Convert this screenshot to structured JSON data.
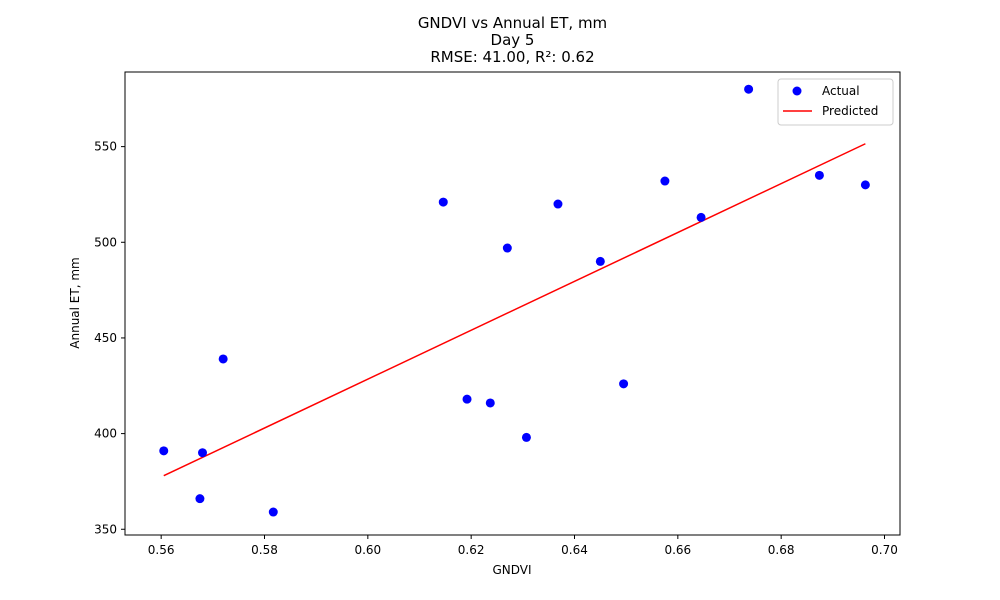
{
  "chart_data": {
    "type": "scatter",
    "title_lines": [
      "GNDVI vs Annual ET, mm",
      "Day 5",
      "RMSE: 41.00, R²: 0.62"
    ],
    "xlabel": "GNDVI",
    "ylabel": "Annual ET, mm",
    "xlim": [
      0.553,
      0.703
    ],
    "ylim": [
      347,
      589
    ],
    "xticks": [
      0.56,
      0.58,
      0.6,
      0.62,
      0.64,
      0.66,
      0.68,
      0.7
    ],
    "xtick_labels": [
      "0.56",
      "0.58",
      "0.60",
      "0.62",
      "0.64",
      "0.66",
      "0.68",
      "0.70"
    ],
    "yticks": [
      350,
      400,
      450,
      500,
      550
    ],
    "ytick_labels": [
      "350",
      "400",
      "450",
      "500",
      "550"
    ],
    "grid": false,
    "legend": {
      "placement": "top-right",
      "entries": [
        "Actual",
        "Predicted"
      ]
    },
    "series": [
      {
        "name": "Actual",
        "kind": "scatter",
        "color": "#0000ff",
        "points": [
          [
            0.5605,
            391
          ],
          [
            0.5675,
            366
          ],
          [
            0.568,
            390
          ],
          [
            0.572,
            439
          ],
          [
            0.5817,
            359
          ],
          [
            0.6146,
            521
          ],
          [
            0.6192,
            418
          ],
          [
            0.6237,
            416
          ],
          [
            0.627,
            497
          ],
          [
            0.6307,
            398
          ],
          [
            0.6368,
            520
          ],
          [
            0.645,
            490
          ],
          [
            0.6495,
            426
          ],
          [
            0.6575,
            532
          ],
          [
            0.6645,
            513
          ],
          [
            0.6737,
            580
          ],
          [
            0.6874,
            535
          ],
          [
            0.6963,
            530
          ]
        ]
      },
      {
        "name": "Predicted",
        "kind": "line",
        "color": "#ff0000",
        "points": [
          [
            0.5605,
            378
          ],
          [
            0.6963,
            551.5
          ]
        ]
      }
    ]
  }
}
